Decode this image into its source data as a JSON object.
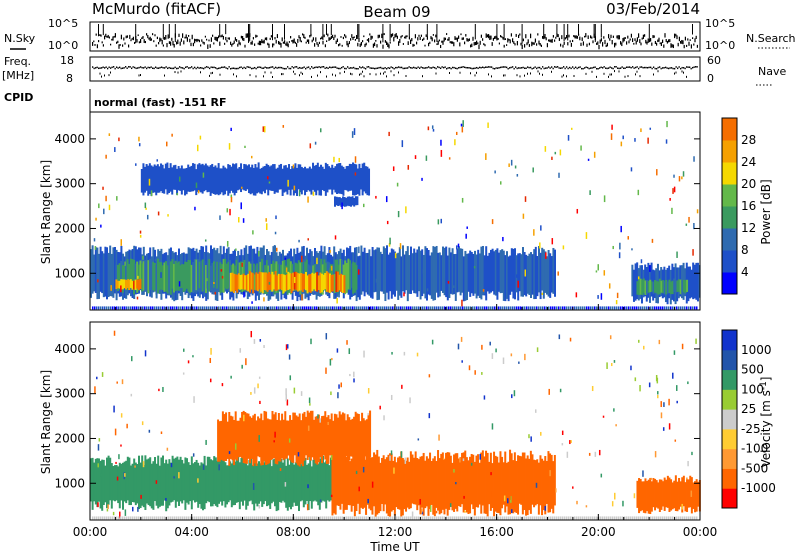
{
  "header": {
    "station": "McMurdo (fitACF)",
    "beam": "Beam 09",
    "date": "03/Feb/2014"
  },
  "strip_labels": {
    "nsky": "N.Sky",
    "nsky_top": "10^5",
    "nsky_bottom": "10^0",
    "freq": "Freq.",
    "freq_unit": "[MHz]",
    "freq_top": "18",
    "freq_bottom": "8",
    "cpid": "CPID",
    "nsearch": "N.Search",
    "nsearch_top": "10^5",
    "nsearch_bottom": "10^0",
    "nave": "Nave",
    "nave_top": "60",
    "nave_bottom": "0",
    "cpid_text": "normal (fast) -151 RF"
  },
  "colors": {
    "power": [
      "#0000ff",
      "#1e50c8",
      "#2f6bb0",
      "#3a9a5f",
      "#63b84a",
      "#f5d800",
      "#f5a000",
      "#f56e00",
      "#e62800",
      "#ff0000"
    ],
    "velocity": [
      "#ff0000",
      "#ff6600",
      "#ff9933",
      "#ffcc33",
      "#cccccc",
      "#99cc33",
      "#339966",
      "#2255aa",
      "#1133cc"
    ]
  },
  "chart_data": [
    {
      "type": "heatmap",
      "name": "power",
      "xlabel": "",
      "ylabel": "Slant Range [km]",
      "xlim": [
        0,
        24
      ],
      "ylim": [
        180,
        4600
      ],
      "yticks": [
        1000,
        2000,
        3000,
        4000
      ],
      "colorbar": {
        "label": "Power [dB]",
        "range": [
          0,
          32
        ],
        "ticks": [
          4,
          8,
          12,
          16,
          20,
          24,
          28
        ]
      },
      "regions": [
        {
          "x0": 0.0,
          "x1": 18.3,
          "y0": 500,
          "y1": 1500,
          "value": 8
        },
        {
          "x0": 1.0,
          "x1": 10.5,
          "y0": 600,
          "y1": 1250,
          "value": 14
        },
        {
          "x0": 5.5,
          "x1": 10.0,
          "y0": 600,
          "y1": 1000,
          "value": 26
        },
        {
          "x0": 1.0,
          "x1": 2.0,
          "y0": 650,
          "y1": 850,
          "value": 26
        },
        {
          "x0": 21.3,
          "x1": 24.0,
          "y0": 400,
          "y1": 1150,
          "value": 8
        },
        {
          "x0": 21.5,
          "x1": 23.5,
          "y0": 550,
          "y1": 850,
          "value": 14
        },
        {
          "x0": 9.6,
          "x1": 10.5,
          "y0": 2500,
          "y1": 2700,
          "value": 6
        },
        {
          "x0": 2.0,
          "x1": 11.0,
          "y0": 2800,
          "y1": 3400,
          "value": 6
        }
      ]
    },
    {
      "type": "heatmap",
      "name": "velocity",
      "xlabel": "Time UT",
      "ylabel": "Slant Range [km]",
      "xlim": [
        0,
        24
      ],
      "ylim": [
        180,
        4600
      ],
      "xticks": [
        "00:00",
        "04:00",
        "08:00",
        "12:00",
        "16:00",
        "20:00",
        "00:00"
      ],
      "yticks": [
        1000,
        2000,
        3000,
        4000
      ],
      "colorbar": {
        "label": "Velocity [m s^-1]",
        "ticks": [
          "-1000",
          "-500",
          "-100",
          "-25",
          "25",
          "100",
          "500",
          "1000"
        ]
      },
      "regions": [
        {
          "x0": 0.0,
          "x1": 9.5,
          "y0": 500,
          "y1": 1500,
          "value": 150
        },
        {
          "x0": 9.5,
          "x1": 18.3,
          "y0": 400,
          "y1": 1600,
          "value": -200
        },
        {
          "x0": 21.5,
          "x1": 24.0,
          "y0": 400,
          "y1": 1100,
          "value": -200
        },
        {
          "x0": 5.0,
          "x1": 11.0,
          "y0": 1500,
          "y1": 2500,
          "value": -200
        }
      ]
    }
  ]
}
